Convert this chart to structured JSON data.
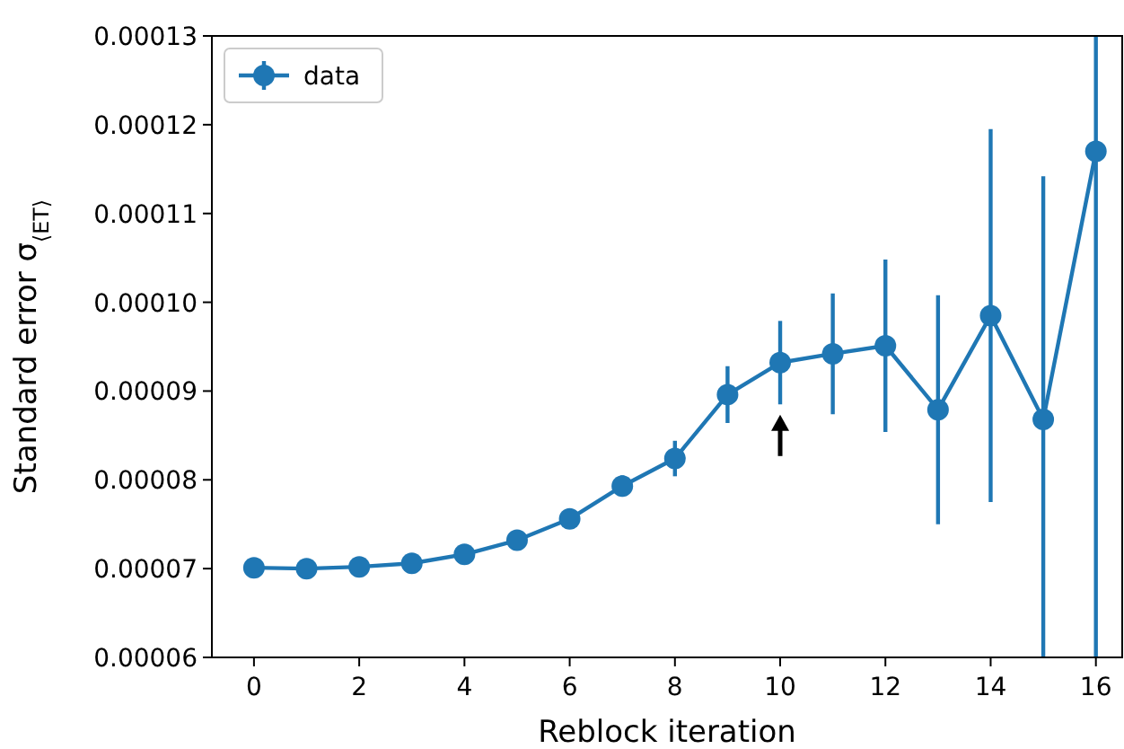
{
  "chart_data": {
    "type": "line",
    "xlabel": "Reblock iteration",
    "ylabel": "Standard error σ$_{⟨E}$$_{T}$$_{⟩}$",
    "x": [
      0,
      1,
      2,
      3,
      4,
      5,
      6,
      7,
      8,
      9,
      10,
      11,
      12,
      13,
      14,
      15,
      16
    ],
    "series": [
      {
        "name": "data",
        "color": "#1f77b4",
        "values": [
          7.01e-05,
          7e-05,
          7.02e-05,
          7.06e-05,
          7.16e-05,
          7.32e-05,
          7.56e-05,
          7.93e-05,
          8.24e-05,
          8.96e-05,
          9.32e-05,
          9.42e-05,
          9.51e-05,
          8.79e-05,
          9.85e-05,
          8.68e-05,
          0.000117
        ],
        "errors": [
          null,
          null,
          null,
          null,
          null,
          null,
          null,
          1.2e-06,
          2e-06,
          3.2e-06,
          4.7e-06,
          6.8e-06,
          9.7e-06,
          1.29e-05,
          2.1e-05,
          [
            6e-05,
            0.0001142
          ],
          [
            6e-05,
            0.00013
          ]
        ]
      }
    ],
    "xlim": [
      -0.8,
      16.5
    ],
    "xticks": [
      0,
      2,
      4,
      6,
      8,
      10,
      12,
      14,
      16
    ],
    "ylim": [
      6e-05,
      0.00013
    ],
    "yticks": [
      {
        "value": 6e-05,
        "label": "0.00006"
      },
      {
        "value": 7e-05,
        "label": "0.00007"
      },
      {
        "value": 8e-05,
        "label": "0.00008"
      },
      {
        "value": 9e-05,
        "label": "0.00009"
      },
      {
        "value": 0.0001,
        "label": "0.00010"
      },
      {
        "value": 0.00011,
        "label": "0.00011"
      },
      {
        "value": 0.00012,
        "label": "0.00012"
      },
      {
        "value": 0.00013,
        "label": "0.00013"
      }
    ],
    "grid": false,
    "legend": "top left",
    "marker": "circle",
    "line_style": "solid"
  }
}
